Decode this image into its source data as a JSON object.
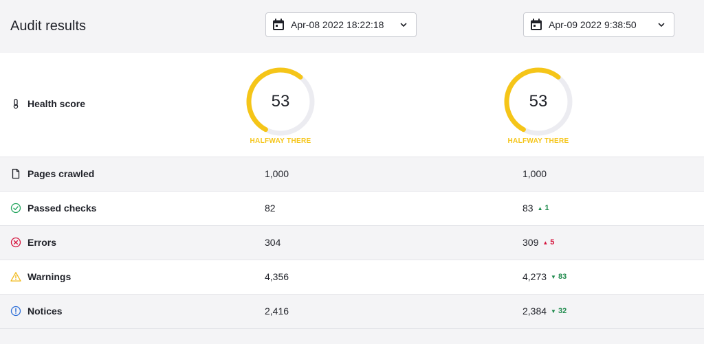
{
  "header": {
    "title": "Audit results",
    "dates": [
      "Apr-08 2022 18:22:18",
      "Apr-09 2022 9:38:50"
    ]
  },
  "health": {
    "label": "Health score",
    "icon": "thermometer-icon",
    "gauges": [
      {
        "value": "53",
        "score": 53,
        "caption": "HALFWAY THERE"
      },
      {
        "value": "53",
        "score": 53,
        "caption": "HALFWAY THERE"
      }
    ],
    "colors": {
      "arc": "#f5c518",
      "track": "#ececf1",
      "caption": "#f5c518"
    }
  },
  "rows": [
    {
      "label": "Pages crawled",
      "icon": "page-icon",
      "v1": "1,000",
      "v2": "1,000",
      "delta": "",
      "dir": ""
    },
    {
      "label": "Passed checks",
      "icon": "check-circle-icon",
      "v1": "82",
      "v2": "83",
      "delta": "1",
      "dir": "up-good"
    },
    {
      "label": "Errors",
      "icon": "error-circle-icon",
      "v1": "304",
      "v2": "309",
      "delta": "5",
      "dir": "up-bad"
    },
    {
      "label": "Warnings",
      "icon": "warning-icon",
      "v1": "4,356",
      "v2": "4,273",
      "delta": "83",
      "dir": "down-good"
    },
    {
      "label": "Notices",
      "icon": "info-circle-icon",
      "v1": "2,416",
      "v2": "2,384",
      "delta": "32",
      "dir": "down-good"
    }
  ],
  "status_colors": {
    "good": "#1e8a4c",
    "bad": "#d5143d",
    "check": "#25a55f",
    "error": "#d5143d",
    "warning": "#f0b91c",
    "info": "#2e6fd8"
  }
}
